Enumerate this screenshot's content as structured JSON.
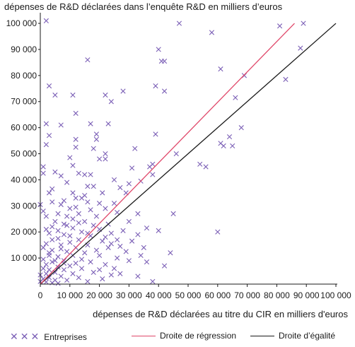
{
  "chart_data": {
    "type": "scatter",
    "ylabel": "dépenses de R&D déclarées dans l’enquête R&D en milliers d’euros",
    "xlabel": "dépenses de R&D déclarées au titre du CIR en milliers d'euros",
    "xlim": [
      0,
      100000
    ],
    "ylim": [
      0,
      103000
    ],
    "x_ticks": [
      "0",
      "10 000",
      "20 000",
      "30 000",
      "40 000",
      "50 000",
      "60 000",
      "70 000",
      "80 000",
      "90 000",
      "100 000"
    ],
    "y_ticks": [
      "10 000",
      "20 000",
      "30 000",
      "40 000",
      "50 000",
      "60 000",
      "70 000",
      "80 000",
      "90 000",
      "100 000"
    ],
    "grid": false,
    "legend_position": "bottom",
    "colors": {
      "points": "#7b5fb6",
      "regression": "#e0486a",
      "equality": "#1a1a1a"
    },
    "series": [
      {
        "name": "Entreprises",
        "kind": "scatter",
        "points": [
          [
            2000,
            101000
          ],
          [
            47000,
            100000
          ],
          [
            58000,
            96500
          ],
          [
            81000,
            99000
          ],
          [
            89000,
            100000
          ],
          [
            16000,
            86000
          ],
          [
            40000,
            90000
          ],
          [
            41000,
            85500
          ],
          [
            42000,
            85500
          ],
          [
            61000,
            82500
          ],
          [
            69000,
            80000
          ],
          [
            88000,
            90500
          ],
          [
            83000,
            78500
          ],
          [
            3000,
            76000
          ],
          [
            39000,
            76000
          ],
          [
            42000,
            74000
          ],
          [
            28000,
            74000
          ],
          [
            5000,
            72500
          ],
          [
            11000,
            72500
          ],
          [
            22000,
            72500
          ],
          [
            24000,
            70000
          ],
          [
            66000,
            71500
          ],
          [
            12000,
            65500
          ],
          [
            2000,
            61500
          ],
          [
            7000,
            61000
          ],
          [
            17000,
            61500
          ],
          [
            23000,
            61500
          ],
          [
            19000,
            57500
          ],
          [
            3000,
            57000
          ],
          [
            39000,
            57500
          ],
          [
            12000,
            55500
          ],
          [
            19000,
            55500
          ],
          [
            64000,
            56500
          ],
          [
            68000,
            60000
          ],
          [
            61000,
            54000
          ],
          [
            62000,
            53000
          ],
          [
            65000,
            53000
          ],
          [
            2000,
            53500
          ],
          [
            12000,
            52500
          ],
          [
            18000,
            52000
          ],
          [
            32000,
            52000
          ],
          [
            46000,
            50000
          ],
          [
            22000,
            50000
          ],
          [
            10000,
            48500
          ],
          [
            20000,
            48000
          ],
          [
            22000,
            48000
          ],
          [
            1000,
            45000
          ],
          [
            11000,
            45500
          ],
          [
            38000,
            46000
          ],
          [
            54000,
            46000
          ],
          [
            56000,
            45000
          ],
          [
            1000,
            42500
          ],
          [
            7000,
            41500
          ],
          [
            5000,
            43000
          ],
          [
            13000,
            42500
          ],
          [
            15000,
            42000
          ],
          [
            17000,
            42000
          ],
          [
            31000,
            44500
          ],
          [
            37000,
            45000
          ],
          [
            25000,
            40000
          ],
          [
            34000,
            39500
          ],
          [
            9000,
            39000
          ],
          [
            38000,
            42000
          ],
          [
            16000,
            37500
          ],
          [
            18000,
            37500
          ],
          [
            4000,
            36500
          ],
          [
            27000,
            37000
          ],
          [
            30000,
            38500
          ],
          [
            21000,
            35000
          ],
          [
            3000,
            35000
          ],
          [
            11000,
            35000
          ],
          [
            29000,
            35000
          ],
          [
            12000,
            33000
          ],
          [
            14000,
            33000
          ],
          [
            0,
            30500
          ],
          [
            4000,
            31500
          ],
          [
            8000,
            32000
          ],
          [
            16000,
            31500
          ],
          [
            20000,
            31000
          ],
          [
            25000,
            31000
          ],
          [
            22000,
            29000
          ],
          [
            10000,
            29000
          ],
          [
            17000,
            28500
          ],
          [
            26000,
            27500
          ],
          [
            33000,
            27000
          ],
          [
            45000,
            27000
          ],
          [
            6000,
            27000
          ],
          [
            13000,
            27000
          ],
          [
            2000,
            26000
          ],
          [
            30000,
            24000
          ],
          [
            23000,
            23000
          ],
          [
            15000,
            24000
          ],
          [
            8000,
            23000
          ],
          [
            36000,
            21500
          ],
          [
            20000,
            21000
          ],
          [
            11000,
            21500
          ],
          [
            4000,
            22000
          ],
          [
            28000,
            20500
          ],
          [
            60000,
            20000
          ],
          [
            33000,
            19000
          ],
          [
            24000,
            19500
          ],
          [
            40000,
            20500
          ],
          [
            17000,
            18500
          ],
          [
            8000,
            19000
          ],
          [
            3000,
            19500
          ],
          [
            26000,
            17000
          ],
          [
            13000,
            17000
          ],
          [
            21000,
            16500
          ],
          [
            6000,
            17500
          ],
          [
            10000,
            16000
          ],
          [
            16000,
            15000
          ],
          [
            2000,
            15500
          ],
          [
            12000,
            14000
          ],
          [
            23000,
            14000
          ],
          [
            7000,
            13500
          ],
          [
            19000,
            13000
          ],
          [
            29000,
            12500
          ],
          [
            4000,
            13000
          ],
          [
            15000,
            12000
          ],
          [
            9000,
            12500
          ],
          [
            20000,
            11000
          ],
          [
            11000,
            11000
          ],
          [
            3000,
            11000
          ],
          [
            26000,
            10000
          ],
          [
            6000,
            10500
          ],
          [
            14000,
            9500
          ],
          [
            1000,
            9500
          ],
          [
            8000,
            9000
          ],
          [
            17000,
            8500
          ],
          [
            4000,
            8500
          ],
          [
            12000,
            8000
          ],
          [
            22000,
            7500
          ],
          [
            2000,
            7500
          ],
          [
            10000,
            7000
          ],
          [
            6000,
            6500
          ],
          [
            14000,
            6000
          ],
          [
            1000,
            6000
          ],
          [
            3000,
            5500
          ],
          [
            8000,
            5500
          ],
          [
            18000,
            4500
          ],
          [
            5000,
            4500
          ],
          [
            11000,
            4000
          ],
          [
            2000,
            4000
          ],
          [
            0,
            3500
          ],
          [
            24000,
            3500
          ],
          [
            7000,
            3000
          ],
          [
            3000,
            2500
          ],
          [
            13000,
            2500
          ],
          [
            1000,
            2000
          ],
          [
            5000,
            1500
          ],
          [
            9000,
            1500
          ],
          [
            0,
            1000
          ],
          [
            2000,
            800
          ],
          [
            4000,
            500
          ],
          [
            6000,
            300
          ],
          [
            16000,
            1000
          ],
          [
            20000,
            5500
          ],
          [
            38000,
            1000
          ],
          [
            33000,
            3000
          ],
          [
            27000,
            4000
          ],
          [
            25000,
            6000
          ],
          [
            21000,
            2000
          ],
          [
            8000,
            8000
          ],
          [
            5000,
            9000
          ],
          [
            3000,
            12000
          ],
          [
            1000,
            14000
          ],
          [
            7000,
            15000
          ],
          [
            10000,
            18500
          ],
          [
            14000,
            20000
          ],
          [
            18000,
            22500
          ],
          [
            5000,
            24000
          ],
          [
            9000,
            26000
          ],
          [
            12000,
            29500
          ],
          [
            7000,
            30500
          ],
          [
            15000,
            34000
          ],
          [
            1000,
            28000
          ],
          [
            2000,
            21000
          ],
          [
            4000,
            17000
          ],
          [
            6000,
            20500
          ],
          [
            9000,
            22500
          ],
          [
            11000,
            25000
          ],
          [
            13000,
            23500
          ],
          [
            19000,
            26000
          ],
          [
            16000,
            19500
          ],
          [
            22000,
            18000
          ],
          [
            24000,
            15500
          ],
          [
            27000,
            14500
          ],
          [
            30000,
            9000
          ],
          [
            34000,
            11000
          ],
          [
            36000,
            8500
          ],
          [
            44000,
            12000
          ],
          [
            42000,
            7000
          ],
          [
            31000,
            16500
          ],
          [
            35000,
            14000
          ]
        ]
      },
      {
        "name": "Droite de régression",
        "kind": "line",
        "x": [
          0,
          86000
        ],
        "y": [
          0,
          100000
        ]
      },
      {
        "name": "Droite d’égalité",
        "kind": "line",
        "x": [
          0,
          100000
        ],
        "y": [
          0,
          100000
        ]
      }
    ]
  }
}
